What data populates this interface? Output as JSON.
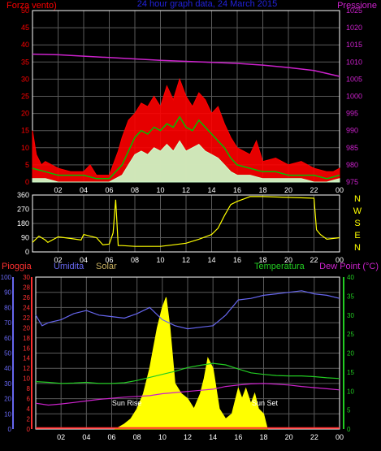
{
  "colors": {
    "background": "#000000",
    "axes": "#ffffff",
    "grid": "#5a5a5a",
    "wind_gust": "#ff0000",
    "wind_avg": "#00c000",
    "wind_min": "#ccffcc",
    "pressure": "#cc22cc",
    "direction": "#ffff00",
    "rain": "#ff3030",
    "humidity": "#6666ee",
    "solar": "#ffff00",
    "temperature": "#22cc22",
    "dewpoint": "#cc22cc",
    "title": "#2222dd",
    "solar_label": "#c8b060",
    "text_white": "#ffffff"
  },
  "chart_data": [
    {
      "id": "wind_pressure",
      "type": "line",
      "title": "24 hour graph data, 24 March 2015",
      "left_label": "Forza vento)",
      "right_label": "Pressione",
      "x_ticks": [
        "02",
        "04",
        "06",
        "08",
        "10",
        "12",
        "14",
        "16",
        "18",
        "20",
        "22",
        "00"
      ],
      "y_left_ticks": [
        "0",
        "5",
        "10",
        "15",
        "20",
        "25",
        "30",
        "35",
        "40",
        "45",
        "50"
      ],
      "y_left_range": [
        0,
        50
      ],
      "y_right_ticks": [
        "975",
        "980",
        "985",
        "990",
        "995",
        "1000",
        "1005",
        "1010",
        "1015",
        "1020",
        "1025"
      ],
      "y_right_range": [
        975,
        1025
      ],
      "grid": true,
      "series": [
        {
          "role": "gust",
          "hours": [
            0,
            0.3,
            0.7,
            1,
            2,
            3,
            4,
            4.5,
            5,
            6,
            6.7,
            7,
            7.5,
            8,
            8.5,
            9,
            9.5,
            10,
            10.5,
            11,
            11.5,
            12,
            12.5,
            13,
            13.5,
            14,
            14.5,
            15,
            15.5,
            16,
            17,
            17.5,
            18,
            19,
            20,
            21,
            22,
            23,
            23.5,
            24
          ],
          "values": [
            15,
            8,
            5,
            6,
            4,
            3,
            3,
            5,
            2,
            2,
            9,
            13,
            18,
            20,
            23,
            22,
            25,
            22,
            28,
            24,
            30,
            25,
            22,
            26,
            24,
            20,
            22,
            17,
            13,
            10,
            8,
            12,
            6,
            7,
            5,
            6,
            4,
            3,
            3,
            4
          ]
        },
        {
          "role": "average",
          "hours": [
            0,
            1,
            2,
            3,
            4,
            5,
            6,
            7,
            7.5,
            8,
            8.5,
            9,
            9.5,
            10,
            10.5,
            11,
            11.5,
            12,
            12.5,
            13,
            13.5,
            14,
            14.5,
            15,
            15.5,
            16,
            17,
            18,
            19,
            20,
            21,
            22,
            23,
            24
          ],
          "values": [
            4,
            3,
            2,
            2,
            2,
            1,
            1,
            5,
            9,
            13,
            15,
            14,
            16,
            15,
            17,
            16,
            19,
            16,
            15,
            18,
            16,
            14,
            12,
            10,
            7,
            5,
            4,
            3,
            3,
            2,
            2,
            2,
            1,
            2
          ]
        },
        {
          "role": "minimum",
          "hours": [
            0,
            1,
            2,
            3,
            4,
            5,
            6,
            7,
            7.5,
            8,
            8.5,
            9,
            9.5,
            10,
            10.5,
            11,
            11.5,
            12,
            12.5,
            13,
            13.5,
            14,
            14.5,
            15,
            15.5,
            16,
            17,
            18,
            19,
            20,
            21,
            22,
            23,
            24
          ],
          "values": [
            1,
            1,
            0,
            0,
            0,
            0,
            0,
            2,
            5,
            8,
            9,
            8,
            10,
            9,
            11,
            9,
            12,
            9,
            10,
            11,
            9,
            8,
            7,
            5,
            3,
            2,
            2,
            1,
            1,
            1,
            1,
            0,
            0,
            1
          ]
        },
        {
          "role": "pressure",
          "hours": [
            0,
            2,
            4,
            6,
            8,
            10,
            12,
            14,
            16,
            18,
            20,
            22,
            24
          ],
          "values": [
            1012.3,
            1012.1,
            1011.7,
            1011.3,
            1010.9,
            1010.5,
            1010.2,
            1009.9,
            1009.6,
            1009.1,
            1008.4,
            1007.5,
            1005.8
          ]
        }
      ]
    },
    {
      "id": "wind_direction",
      "type": "line",
      "x_ticks": [
        "02",
        "04",
        "06",
        "08",
        "10",
        "12",
        "14",
        "16",
        "18",
        "20",
        "22",
        "00"
      ],
      "y_ticks": [
        "0",
        "90",
        "180",
        "270",
        "360"
      ],
      "y_range": [
        0,
        360
      ],
      "compass_labels": [
        "N",
        "W",
        "S",
        "E",
        "N"
      ],
      "grid": true,
      "series": [
        {
          "role": "direction",
          "hours": [
            0,
            0.5,
            1,
            1.2,
            2,
            3,
            3.8,
            4,
            5,
            5.5,
            6,
            6.3,
            6.5,
            6.7,
            7,
            8,
            9,
            10,
            11,
            12,
            13,
            14,
            14.5,
            15,
            15.5,
            16,
            16.5,
            17,
            18,
            20,
            22,
            22.2,
            22.5,
            23,
            24
          ],
          "values": [
            60,
            100,
            75,
            60,
            95,
            85,
            75,
            110,
            90,
            45,
            50,
            120,
            330,
            40,
            40,
            35,
            35,
            35,
            45,
            55,
            80,
            110,
            150,
            230,
            300,
            320,
            335,
            350,
            350,
            345,
            340,
            140,
            110,
            80,
            90
          ]
        }
      ]
    },
    {
      "id": "rain_humidity_solar_temp",
      "type": "line",
      "labels": {
        "rain": "Pioggia",
        "humidity": "Umidita",
        "solar": "Solar",
        "temperature": "Temperatura",
        "dewpoint": "Dew Point (°C)"
      },
      "x_ticks": [
        "02",
        "04",
        "06",
        "08",
        "10",
        "12",
        "14",
        "16",
        "18",
        "20",
        "22",
        "00"
      ],
      "y_humidity_ticks": [
        "0",
        "10",
        "20",
        "30",
        "40",
        "50",
        "60",
        "70",
        "80",
        "90",
        "100"
      ],
      "y_humidity_range": [
        0,
        100
      ],
      "y_rain_ticks": [
        "0",
        "2",
        "4",
        "6",
        "8",
        "10",
        "12",
        "14",
        "16",
        "18",
        "20",
        "22",
        "24",
        "26",
        "28",
        "30"
      ],
      "y_rain_range": [
        0,
        30
      ],
      "y_temp_ticks": [
        "0",
        "5",
        "10",
        "15",
        "20",
        "25",
        "30",
        "35",
        "40"
      ],
      "y_temp_range": [
        0,
        40
      ],
      "annotations": [
        "Sun Rise",
        "Sun Set"
      ],
      "grid": true,
      "series": [
        {
          "role": "humidity",
          "hours": [
            0,
            0.5,
            1,
            2,
            3,
            4,
            5,
            6,
            7,
            8,
            9,
            10,
            11,
            12,
            13,
            14,
            15,
            16,
            17,
            18,
            19,
            20,
            21,
            22,
            23,
            24
          ],
          "values": [
            75,
            68,
            70,
            72,
            76,
            78,
            75,
            74,
            73,
            76,
            80,
            72,
            68,
            66,
            67,
            68,
            75,
            85,
            86,
            88,
            89,
            90,
            91,
            89,
            88,
            86
          ]
        },
        {
          "role": "temperature",
          "hours": [
            0,
            1,
            2,
            3,
            4,
            5,
            6,
            7,
            8,
            9,
            10,
            11,
            12,
            13,
            14,
            15,
            16,
            17,
            18,
            19,
            20,
            21,
            22,
            23,
            24
          ],
          "values": [
            12.5,
            12.3,
            12,
            12.1,
            12.3,
            12,
            12,
            12.2,
            12.8,
            13.6,
            14.4,
            15.2,
            16.2,
            16.8,
            17.3,
            16.9,
            15.8,
            14.8,
            14.4,
            14.1,
            14,
            14,
            13.8,
            13.5,
            13.3
          ]
        },
        {
          "role": "dewpoint",
          "hours": [
            0,
            1,
            2,
            3,
            4,
            5,
            6,
            7,
            8,
            9,
            10,
            11,
            12,
            13,
            14,
            15,
            16,
            17,
            18,
            19,
            20,
            21,
            22,
            23,
            24
          ],
          "values": [
            6.8,
            6.3,
            6.6,
            7,
            7.4,
            7.8,
            8.1,
            8.4,
            8.6,
            8.8,
            9.3,
            9.6,
            9.9,
            10.2,
            10.5,
            11.2,
            11.6,
            11.9,
            12,
            11.8,
            11.6,
            11.2,
            10.9,
            10.6,
            10.3
          ]
        },
        {
          "role": "solar",
          "hours": [
            6.3,
            7,
            7.5,
            8,
            8.5,
            9,
            9.3,
            9.6,
            10,
            10.3,
            10.6,
            11,
            11.5,
            12,
            12.5,
            13,
            13.3,
            13.6,
            14,
            14.5,
            15,
            15.5,
            16,
            16.3,
            16.6,
            17,
            17.3,
            17.6,
            18,
            18.3
          ],
          "values": [
            0,
            1,
            2,
            4,
            7,
            12,
            16,
            20,
            24,
            26,
            20,
            9,
            7,
            6,
            4,
            7,
            10,
            14,
            12,
            4,
            2,
            3,
            8,
            6,
            8,
            5,
            7,
            4,
            3,
            0
          ]
        },
        {
          "role": "rain",
          "hours": [
            0,
            24
          ],
          "values": [
            0.2,
            0.2
          ]
        }
      ]
    }
  ]
}
